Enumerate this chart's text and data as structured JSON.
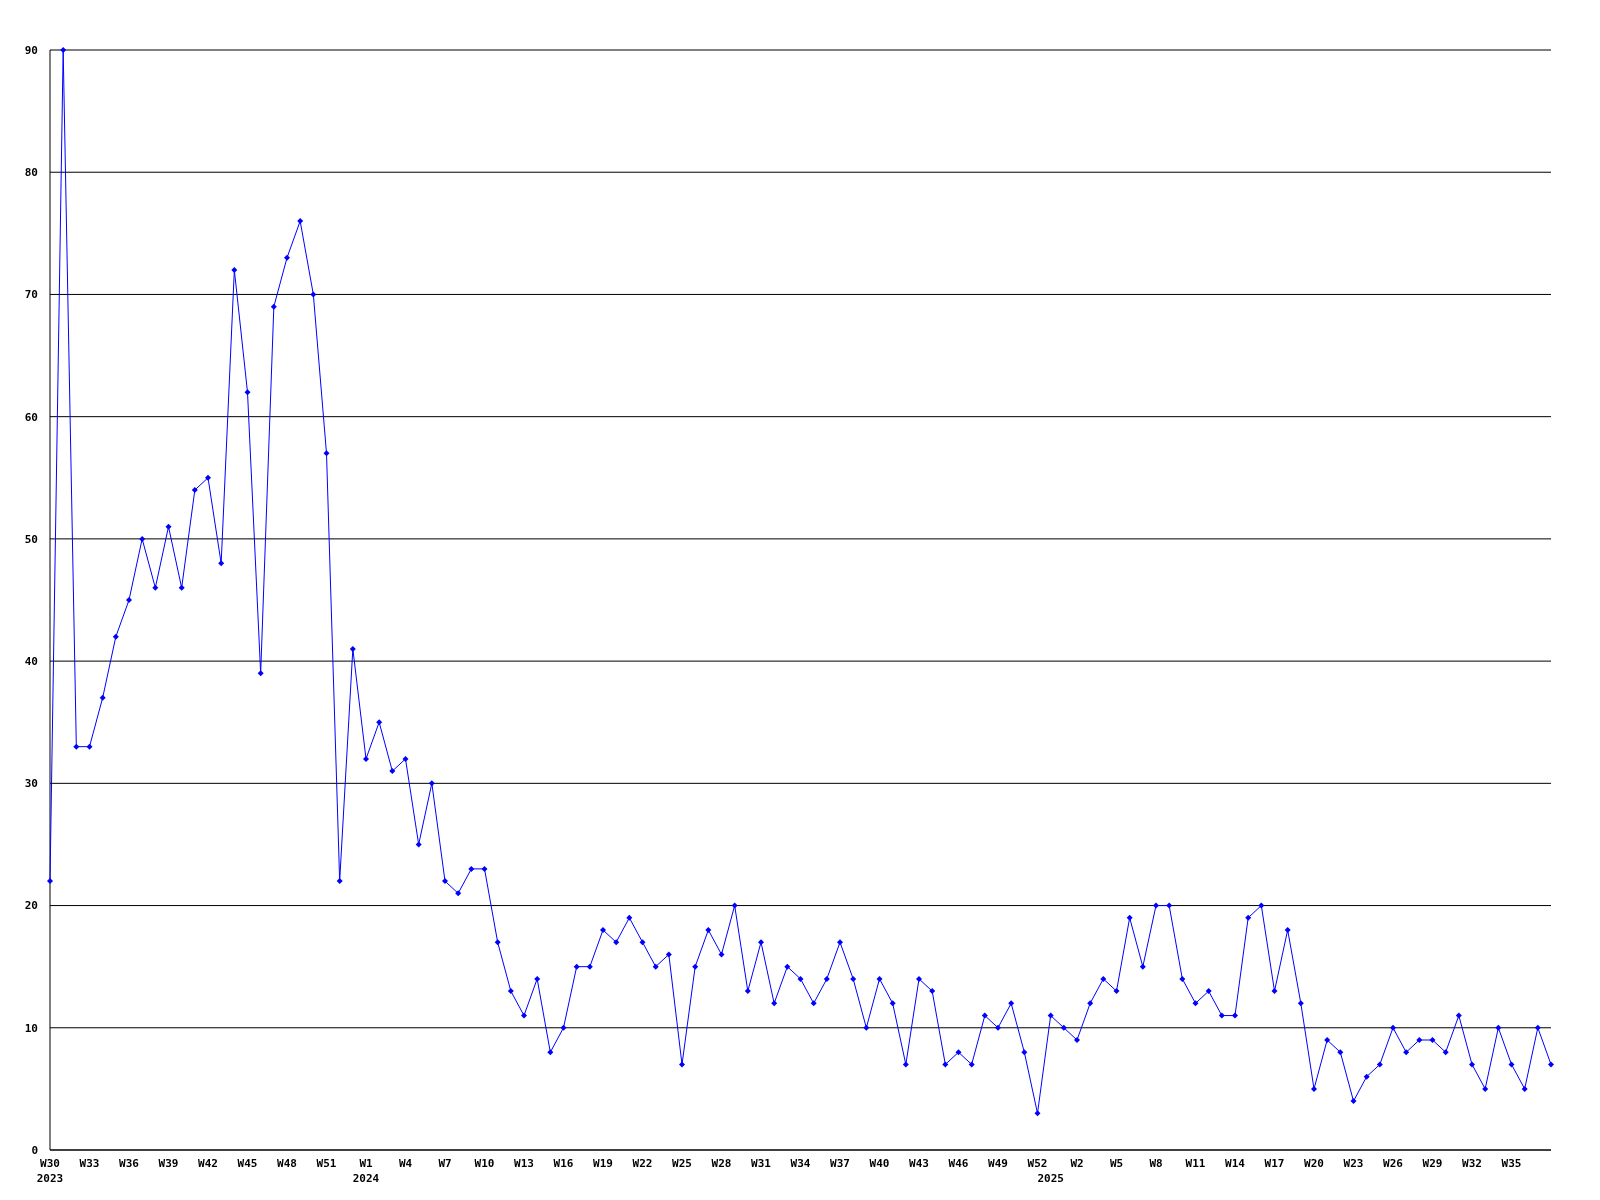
{
  "chart_data": {
    "type": "line",
    "categories": [
      "W30\n2023",
      null,
      null,
      "W33",
      null,
      null,
      "W36",
      null,
      null,
      "W39",
      null,
      null,
      "W42",
      null,
      null,
      "W45",
      null,
      null,
      "W48",
      null,
      null,
      "W51",
      null,
      null,
      "W1\n2024",
      null,
      null,
      "W4",
      null,
      null,
      "W7",
      null,
      null,
      "W10",
      null,
      null,
      "W13",
      null,
      null,
      "W16",
      null,
      null,
      "W19",
      null,
      null,
      "W22",
      null,
      null,
      "W25",
      null,
      null,
      "W28",
      null,
      null,
      "W31",
      null,
      null,
      "W34",
      null,
      null,
      "W37",
      null,
      null,
      "W40",
      null,
      null,
      "W43",
      null,
      null,
      "W46",
      null,
      null,
      "W49",
      null,
      null,
      "W52",
      "\n2025",
      null,
      "W2",
      null,
      null,
      "W5",
      null,
      null,
      "W8",
      null,
      null,
      "W11",
      null,
      null,
      "W14",
      null,
      null,
      "W17",
      null,
      null,
      "W20",
      null,
      null,
      "W23",
      null,
      null,
      "W26",
      null,
      null,
      "W29",
      null,
      null,
      "W32",
      null,
      null,
      "W35",
      null,
      null,
      null
    ],
    "series": [
      {
        "color": "#0000ff",
        "values": [
          22,
          90,
          33,
          33,
          37,
          42,
          45,
          50,
          46,
          51,
          46,
          54,
          55,
          48,
          72,
          62,
          39,
          69,
          73,
          76,
          70,
          57,
          22,
          41,
          32,
          35,
          31,
          32,
          25,
          30,
          22,
          21,
          23,
          23,
          17,
          13,
          11,
          14,
          8,
          10,
          15,
          15,
          18,
          17,
          19,
          17,
          15,
          16,
          7,
          15,
          18,
          16,
          20,
          13,
          17,
          12,
          15,
          14,
          12,
          14,
          17,
          14,
          10,
          14,
          12,
          7,
          14,
          13,
          7,
          8,
          7,
          11,
          10,
          12,
          8,
          3,
          11,
          10,
          9,
          12,
          14,
          13,
          19,
          15,
          20,
          20,
          14,
          12,
          13,
          11,
          11,
          19,
          20,
          13,
          18,
          12,
          5,
          9,
          8,
          4,
          6,
          7,
          10,
          8,
          9,
          9,
          8,
          11,
          7,
          5,
          10,
          7,
          5,
          10,
          7
        ]
      }
    ],
    "ylim": [
      0,
      90
    ],
    "yticks": [
      0,
      10,
      20,
      30,
      40,
      50,
      60,
      70,
      80,
      90
    ],
    "grid": "y",
    "marker": "diamond",
    "line_style": "solid"
  }
}
